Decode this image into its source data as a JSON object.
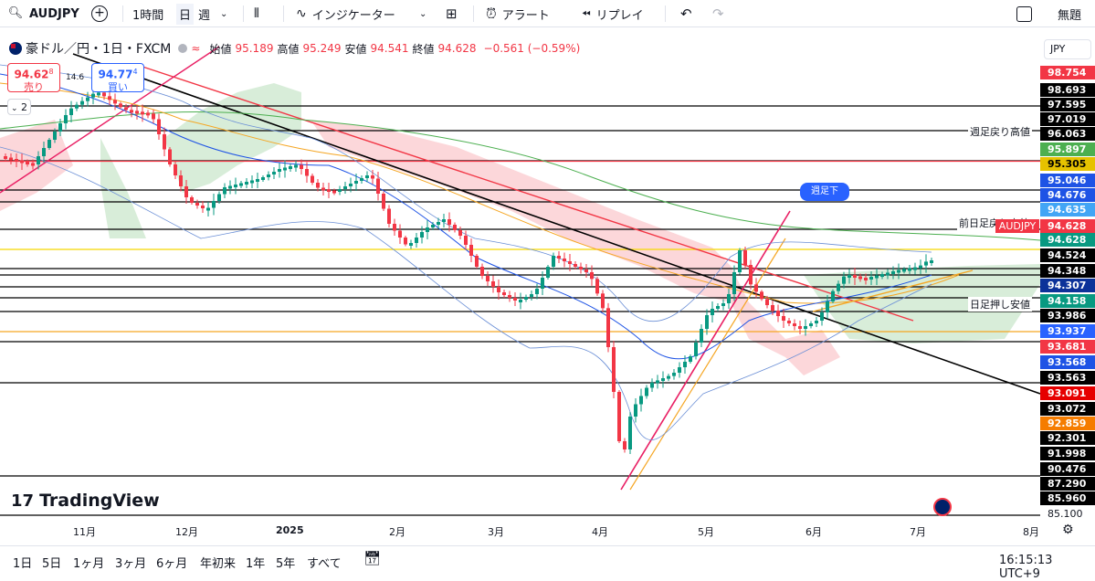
{
  "toolbar": {
    "symbol": "AUDJPY",
    "interval": "1時間",
    "day": "日",
    "week": "週",
    "indicators": "インジケーター",
    "alert": "アラート",
    "replay": "リプレイ",
    "layout_name": "無題"
  },
  "legend": {
    "title": "豪ドル／円・1日・FXCM",
    "open_label": "始値",
    "open": "95.189",
    "high_label": "高値",
    "high": "95.249",
    "low_label": "安値",
    "low": "94.541",
    "close_label": "終値",
    "close": "94.628",
    "change": "−0.561 (−0.59%)"
  },
  "trade": {
    "sell_price_main": "94.62",
    "sell_price_sup": "8",
    "sell_label": "売り",
    "spread": "14.6",
    "buy_price_main": "94.77",
    "buy_price_sup": "4",
    "buy_label": "買い",
    "collapse_count": "2"
  },
  "currency": "JPY",
  "annotations": {
    "weekly_high": "週足戻り高値",
    "prev_day_high": "前日足戻り高値",
    "daily_low": "日足押し安値",
    "weekly_down": "週足下"
  },
  "symbol_tag": "AUDJPY",
  "price_labels": [
    {
      "v": "98.754",
      "c": "#f23645"
    },
    {
      "v": "98.693",
      "c": "#000000"
    },
    {
      "v": "97.595",
      "c": "#000000"
    },
    {
      "v": "97.019",
      "c": "#000000"
    },
    {
      "v": "96.063",
      "c": "#000000"
    },
    {
      "v": "95.897",
      "c": "#4caf50"
    },
    {
      "v": "95.305",
      "c": "#e6c200"
    },
    {
      "v": "95.046",
      "c": "#1e53e5"
    },
    {
      "v": "94.676",
      "c": "#1e53e5"
    },
    {
      "v": "94.635",
      "c": "#42a5f5"
    },
    {
      "v": "94.628",
      "c": "#f23645"
    },
    {
      "v": "94.628",
      "c": "#089981"
    },
    {
      "v": "94.524",
      "c": "#000000"
    },
    {
      "v": "94.348",
      "c": "#000000"
    },
    {
      "v": "94.307",
      "c": "#0c3299"
    },
    {
      "v": "94.158",
      "c": "#089981"
    },
    {
      "v": "93.986",
      "c": "#000000"
    },
    {
      "v": "93.937",
      "c": "#2962ff"
    },
    {
      "v": "93.681",
      "c": "#f23645"
    },
    {
      "v": "93.568",
      "c": "#1e53e5"
    },
    {
      "v": "93.563",
      "c": "#000000"
    },
    {
      "v": "93.091",
      "c": "#e60000"
    },
    {
      "v": "93.072",
      "c": "#000000"
    },
    {
      "v": "92.859",
      "c": "#f57c00"
    },
    {
      "v": "92.301",
      "c": "#000000"
    },
    {
      "v": "91.998",
      "c": "#000000"
    },
    {
      "v": "90.476",
      "c": "#000000"
    },
    {
      "v": "87.290",
      "c": "#000000"
    },
    {
      "v": "85.960",
      "c": "#000000"
    },
    {
      "v": "85.100",
      "c": "#ffffff"
    }
  ],
  "time_labels": [
    "11月",
    "12月",
    "2025",
    "2月",
    "3月",
    "4月",
    "5月",
    "6月",
    "7月",
    "8月"
  ],
  "ranges": [
    "1日",
    "5日",
    "1ヶ月",
    "3ヶ月",
    "6ヶ月",
    "年初来",
    "1年",
    "5年",
    "すべて"
  ],
  "clock": "16:15:13 UTC+9",
  "brand": "TradingView"
}
